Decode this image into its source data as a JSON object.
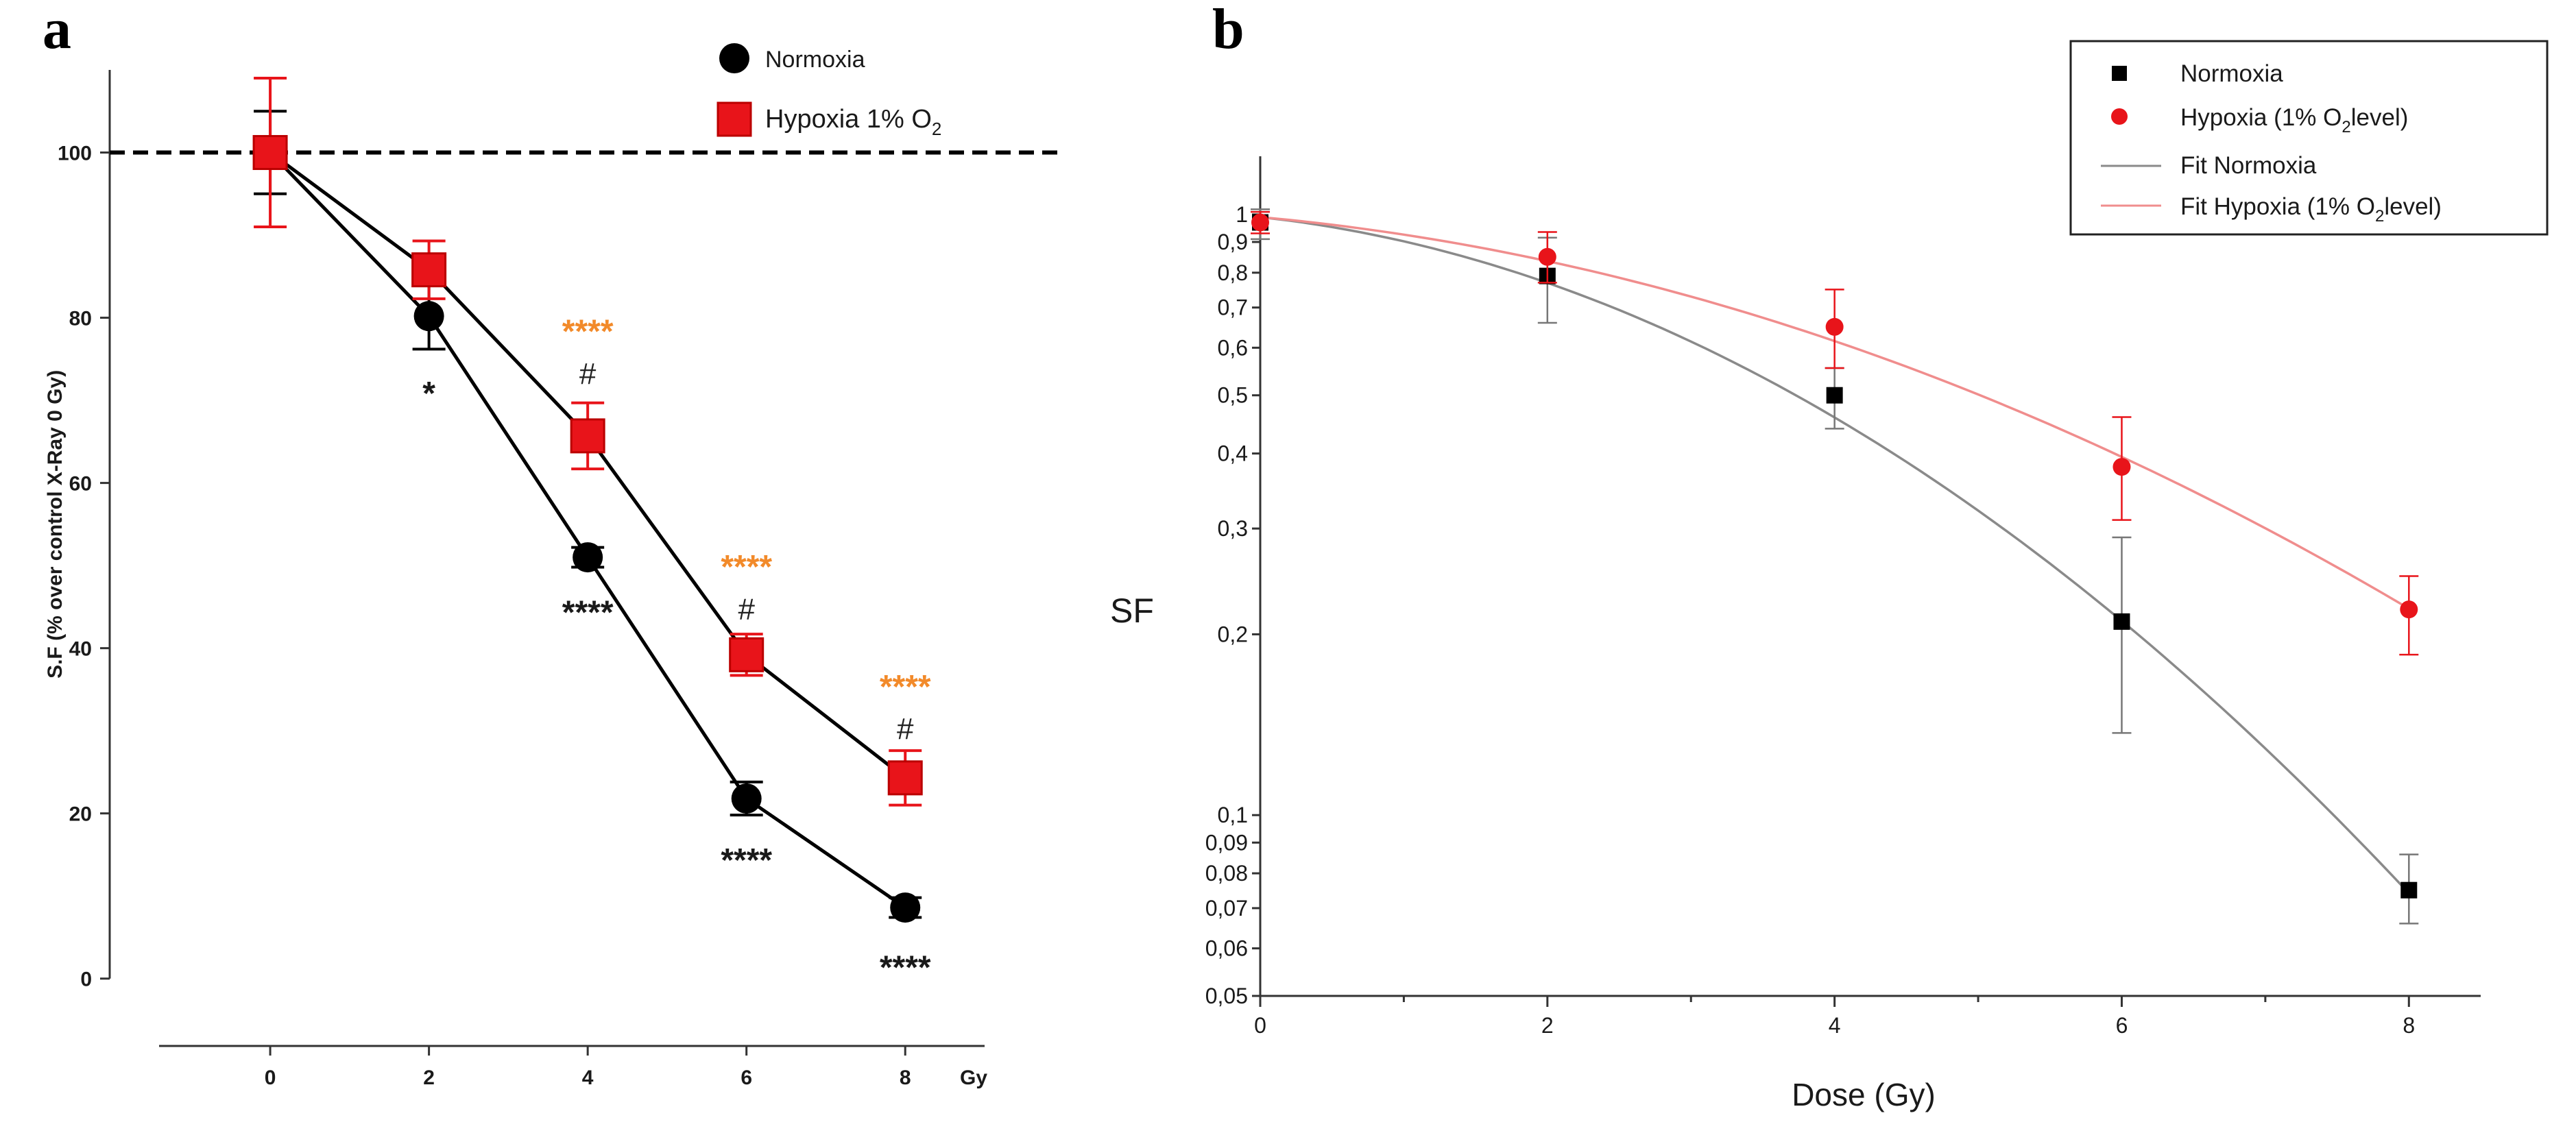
{
  "panels": {
    "a_label": "a",
    "b_label": "b"
  },
  "chart_data": [
    {
      "panel": "a",
      "type": "line",
      "title": "",
      "xlabel": "Gy",
      "ylabel": "S.F (% over control X-Ray 0 Gy)",
      "x": [
        0,
        2,
        4,
        6,
        8
      ],
      "xlim": [
        -1.4,
        9
      ],
      "ylim": [
        -5,
        110
      ],
      "xticks": [
        0,
        2,
        4,
        6,
        8
      ],
      "yticks": [
        0,
        20,
        40,
        60,
        80,
        100
      ],
      "reference_line": {
        "y": 100,
        "style": "dashed"
      },
      "legend_position": "top-right",
      "series": [
        {
          "name": "Normoxia",
          "color": "#000000",
          "marker": "circle",
          "values": [
            100,
            80.2,
            51.0,
            21.8,
            8.6
          ],
          "error": [
            5,
            4,
            1.2,
            2,
            1.2
          ]
        },
        {
          "name": "Hypoxia 1% O",
          "name_sub": "2",
          "color": "#e8141a",
          "marker": "square",
          "values": [
            100,
            85.8,
            65.7,
            39.2,
            24.3
          ],
          "error": [
            9,
            3.5,
            4,
            2.5,
            3.3
          ]
        }
      ],
      "annotations": [
        {
          "x": 2,
          "y": 71,
          "text": "*",
          "color": "#1a1a1a"
        },
        {
          "x": 4,
          "y": 44.5,
          "text": "****",
          "color": "#1a1a1a"
        },
        {
          "x": 6,
          "y": 14.5,
          "text": "****",
          "color": "#1a1a1a"
        },
        {
          "x": 8,
          "y": 1.5,
          "text": "****",
          "color": "#1a1a1a"
        },
        {
          "x": 4,
          "y": 78.5,
          "text": "****",
          "color": "#f28a2a"
        },
        {
          "x": 4,
          "y": 73.5,
          "text": "#",
          "color": "#222222"
        },
        {
          "x": 6,
          "y": 50,
          "text": "****",
          "color": "#f28a2a"
        },
        {
          "x": 6,
          "y": 45,
          "text": "#",
          "color": "#222222"
        },
        {
          "x": 8,
          "y": 35.5,
          "text": "****",
          "color": "#f28a2a"
        },
        {
          "x": 8,
          "y": 30.5,
          "text": "#",
          "color": "#222222"
        }
      ]
    },
    {
      "panel": "b",
      "type": "scatter",
      "title": "",
      "xlabel": "Dose (Gy)",
      "ylabel": "SF",
      "yscale": "log",
      "xlim": [
        0,
        8.5
      ],
      "ylim": [
        0.05,
        1.25
      ],
      "xticks": [
        0,
        2,
        4,
        6,
        8
      ],
      "xtick_labels": [
        "0",
        "2",
        "4",
        "6",
        "8"
      ],
      "yticks": [
        1,
        0.9,
        0.8,
        0.7,
        0.6,
        0.5,
        0.4,
        0.3,
        0.2,
        0.1,
        0.09,
        0.08,
        0.07,
        0.06,
        0.05
      ],
      "ytick_labels": [
        "1",
        "0,9",
        "0,8",
        "0,7",
        "0,6",
        "0,5",
        "0,4",
        "0,3",
        "0,2",
        "0,1",
        "0,09",
        "0,08",
        "0,07",
        "0,06",
        "0,05"
      ],
      "legend_position": "top-right",
      "series": [
        {
          "name": "Normoxia",
          "color": "#000000",
          "marker": "square",
          "x": [
            0,
            2,
            4,
            6,
            8
          ],
          "values": [
            0.97,
            0.79,
            0.5,
            0.21,
            0.075
          ],
          "err_low": [
            0.91,
            0.66,
            0.44,
            0.137,
            0.066
          ],
          "err_high": [
            1.02,
            0.915,
            0.555,
            0.29,
            0.086
          ]
        },
        {
          "name": "Hypoxia (1% O",
          "name_sub": "2",
          "name_tail": "level)",
          "color": "#e8141a",
          "marker": "circle",
          "x": [
            0,
            2,
            4,
            6,
            8
          ],
          "values": [
            0.97,
            0.85,
            0.65,
            0.38,
            0.22
          ],
          "err_low": [
            0.93,
            0.77,
            0.555,
            0.31,
            0.185
          ],
          "err_high": [
            1.01,
            0.935,
            0.75,
            0.46,
            0.25
          ]
        }
      ],
      "fits": [
        {
          "name": "Fit Normoxia",
          "color": "#8a8a8a",
          "s0": 0.99,
          "alpha": 0.06,
          "beta": 0.033
        },
        {
          "name": "Fit Hypoxia (1% O",
          "name_sub": "2",
          "name_tail": "level)",
          "color": "#f08d8d",
          "s0": 0.99,
          "alpha": 0.05,
          "beta": 0.0172
        }
      ]
    }
  ]
}
